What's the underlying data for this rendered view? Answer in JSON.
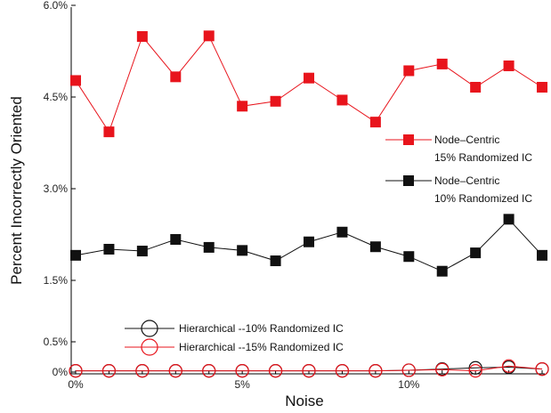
{
  "chart_data": {
    "type": "line",
    "title": "",
    "xlabel": "Noise",
    "ylabel": "Percent Incorrectly Oriented",
    "xlim": [
      0,
      14
    ],
    "ylim": [
      0,
      6
    ],
    "x_ticks": [
      {
        "value": 0,
        "label": "0%"
      },
      {
        "value": 5,
        "label": "5%"
      },
      {
        "value": 10,
        "label": "10%"
      }
    ],
    "y_ticks": [
      {
        "value": 0,
        "label": "0%"
      },
      {
        "value": 0.5,
        "label": "0.5%"
      },
      {
        "value": 1.5,
        "label": "1.5%"
      },
      {
        "value": 3.0,
        "label": "3.0%"
      },
      {
        "value": 4.5,
        "label": "4.5%"
      },
      {
        "value": 6.0,
        "label": "6.0%"
      }
    ],
    "x": [
      0,
      1,
      2,
      3,
      4,
      5,
      6,
      7,
      8,
      9,
      10,
      11,
      12,
      13,
      14
    ],
    "series": [
      {
        "name": "Node–Centric 15% Randomized IC",
        "legend_lines": [
          "Node–Centric",
          "15% Randomized IC"
        ],
        "color": "#e8141c",
        "marker": "filled-square",
        "values": [
          4.77,
          3.93,
          5.49,
          4.83,
          5.5,
          4.35,
          4.43,
          4.81,
          4.45,
          4.09,
          4.93,
          5.04,
          4.66,
          5.01,
          4.66
        ]
      },
      {
        "name": "Node–Centric 10% Randomized IC",
        "legend_lines": [
          "Node–Centric",
          "10% Randomized IC"
        ],
        "color": "#111111",
        "marker": "filled-square",
        "values": [
          1.91,
          2.01,
          1.98,
          2.17,
          2.04,
          1.99,
          1.82,
          2.13,
          2.29,
          2.05,
          1.89,
          1.65,
          1.95,
          2.5,
          1.91
        ]
      },
      {
        "name": "Hierarchical --10% Randomized IC",
        "legend_lines": [
          "Hierarchical --10% Randomized IC"
        ],
        "color": "#111111",
        "marker": "open-circle",
        "values": [
          0.02,
          0.02,
          0.02,
          0.02,
          0.02,
          0.02,
          0.02,
          0.02,
          0.02,
          0.02,
          0.03,
          0.05,
          0.07,
          0.08,
          0.05
        ]
      },
      {
        "name": "Hierarchical --15% Randomized IC",
        "legend_lines": [
          "Hierarchical --15% Randomized IC"
        ],
        "color": "#e8141c",
        "marker": "open-circle",
        "values": [
          0.02,
          0.02,
          0.02,
          0.02,
          0.02,
          0.02,
          0.02,
          0.02,
          0.02,
          0.02,
          0.03,
          0.04,
          0.02,
          0.1,
          0.05
        ]
      }
    ],
    "legend_placement": "right (node-centric), bottom-left (hierarchical)",
    "grid": false
  }
}
